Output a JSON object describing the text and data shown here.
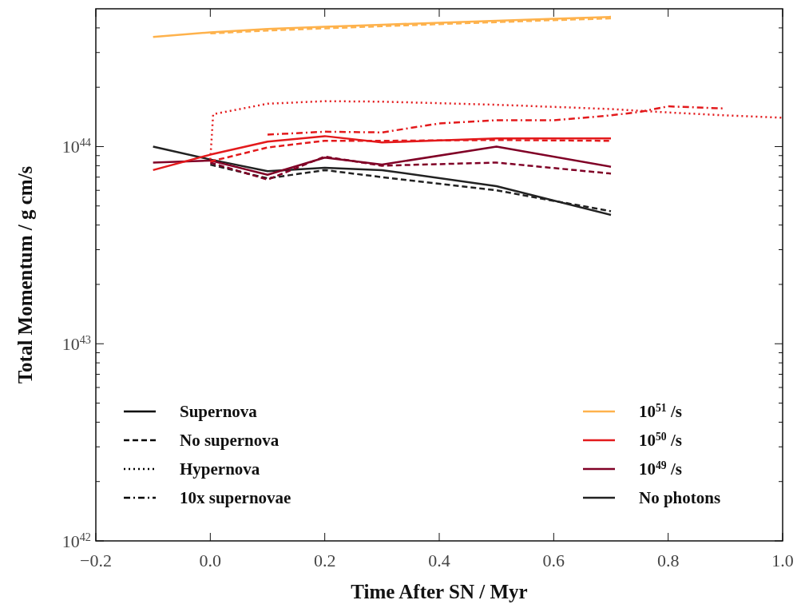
{
  "chart_data": {
    "type": "line",
    "xlabel": "Time After SN / Myr",
    "ylabel": "Total Momentum / g cm/s",
    "log": "y",
    "xlim": [
      -0.2,
      1.0
    ],
    "ylim": [
      1e+42,
      5e+44
    ],
    "xticks": [
      {
        "value": -0.2,
        "label": "−0.2"
      },
      {
        "value": 0,
        "label": "0.0"
      },
      {
        "value": 0.2,
        "label": "0.2"
      },
      {
        "value": 0.4,
        "label": "0.4"
      },
      {
        "value": 0.6,
        "label": "0.6"
      },
      {
        "value": 0.8,
        "label": "0.8"
      },
      {
        "value": 1.0,
        "label": "1.0"
      }
    ],
    "yticks": [
      {
        "value": 1e+42,
        "label": "10$^{42}$"
      },
      {
        "value": 1e+43,
        "label": "10$^{43}$"
      },
      {
        "value": 1e+44,
        "label": "10$^{44}$"
      }
    ],
    "grid": false,
    "legend": "bottom",
    "marker": "none",
    "series": [
      {
        "name": "Supernova",
        "color": "#000000",
        "line_style": "solid"
      },
      {
        "name": "No supernova",
        "color": "#000000",
        "line_style": "dashed"
      },
      {
        "name": "Hypernova",
        "color": "#000000",
        "line_style": "dotted"
      },
      {
        "name": "10x supernovae",
        "color": "#000000",
        "line_style": "dashdot"
      },
      {
        "name": "10$^{51}$ /s",
        "color": "#feb24c",
        "line_style": "solid",
        "x": [
          -0.1,
          0,
          0.1,
          0.2,
          0.3,
          0.4,
          0.5,
          0.6,
          0.7
        ],
        "values": [
          3.6e+44,
          3.8e+44,
          3.95e+44,
          4.05e+44,
          4.15e+44,
          4.25e+44,
          4.35e+44,
          4.45e+44,
          4.55e+44
        ]
      },
      {
        "color": "#feb24c",
        "line_style": "dashed",
        "x": [
          0,
          0.1,
          0.2,
          0.3,
          0.4,
          0.5,
          0.6,
          0.7
        ],
        "values": [
          3.75e+44,
          3.88e+44,
          3.98e+44,
          4.08e+44,
          4.18e+44,
          4.28e+44,
          4.38e+44,
          4.47e+44
        ]
      },
      {
        "name": "10$^{50}$ /s",
        "color": "#e31a1c",
        "line_style": "solid",
        "x": [
          -0.1,
          0,
          0.1,
          0.2,
          0.3,
          0.5,
          0.7
        ],
        "values": [
          7.6e+43,
          9.1e+43,
          1.06e+44,
          1.13e+44,
          1.05e+44,
          1.1e+44,
          1.1e+44
        ]
      },
      {
        "color": "#e31a1c",
        "line_style": "dashed",
        "x": [
          0,
          0.1,
          0.2,
          0.3,
          0.5,
          0.7
        ],
        "values": [
          8.4e+43,
          9.9e+43,
          1.07e+44,
          1.07e+44,
          1.08e+44,
          1.07e+44
        ]
      },
      {
        "color": "#e31a1c",
        "line_style": "dotted",
        "x": [
          0,
          0.005,
          0.1,
          0.2,
          0.3,
          0.4,
          0.5,
          0.6,
          0.7,
          0.8,
          0.9,
          1.0
        ],
        "values": [
          8.6e+43,
          1.46e+44,
          1.65e+44,
          1.7e+44,
          1.69e+44,
          1.66e+44,
          1.63e+44,
          1.59e+44,
          1.55e+44,
          1.49e+44,
          1.44e+44,
          1.4e+44
        ]
      },
      {
        "color": "#e31a1c",
        "line_style": "dashdot",
        "x": [
          0.1,
          0.2,
          0.3,
          0.4,
          0.5,
          0.6,
          0.7,
          0.75,
          0.8,
          0.85,
          0.9
        ],
        "values": [
          1.15e+44,
          1.19e+44,
          1.18e+44,
          1.31e+44,
          1.36e+44,
          1.36e+44,
          1.44e+44,
          1.5e+44,
          1.6e+44,
          1.58e+44,
          1.56e+44
        ]
      },
      {
        "name": "10$^{49}$ /s",
        "color": "#800026",
        "line_style": "solid",
        "x": [
          -0.1,
          0,
          0.1,
          0.2,
          0.3,
          0.5,
          0.7
        ],
        "values": [
          8.3e+43,
          8.5e+43,
          7.2e+43,
          8.8e+43,
          8.1e+43,
          1e+44,
          7.9e+43
        ]
      },
      {
        "color": "#800026",
        "line_style": "dashed",
        "x": [
          0,
          0.1,
          0.2,
          0.3,
          0.5,
          0.7
        ],
        "values": [
          8.3e+43,
          6.8e+43,
          8.9e+43,
          8e+43,
          8.3e+43,
          7.3e+43
        ]
      },
      {
        "name": "No photons",
        "color": "#222222",
        "line_style": "solid",
        "x": [
          -0.1,
          0,
          0.1,
          0.2,
          0.3,
          0.5,
          0.7
        ],
        "values": [
          1e+44,
          8.6e+43,
          7.5e+43,
          7.8e+43,
          7.6e+43,
          6.3e+43,
          4.5e+43
        ]
      },
      {
        "color": "#222222",
        "line_style": "dashed",
        "x": [
          0,
          0.1,
          0.2,
          0.3,
          0.5,
          0.7
        ],
        "values": [
          8.1e+43,
          6.9e+43,
          7.6e+43,
          7e+43,
          6e+43,
          4.7e+43
        ]
      }
    ]
  }
}
